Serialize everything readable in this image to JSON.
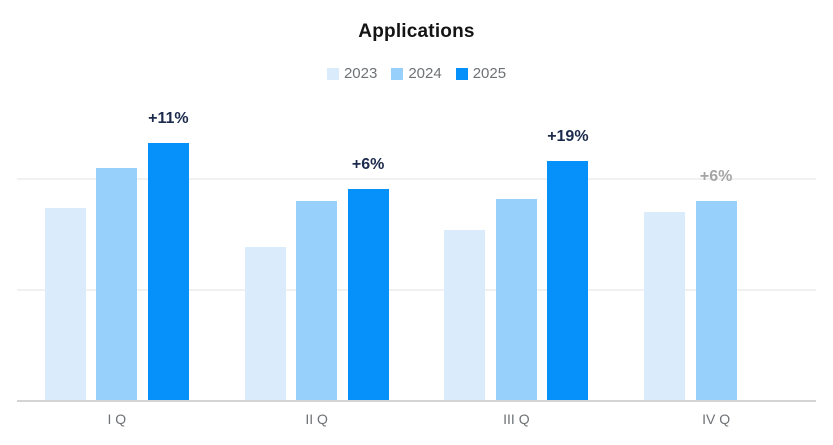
{
  "chart": {
    "title": "Applications"
  },
  "chart_data": {
    "type": "bar",
    "title": "Applications",
    "categories": [
      "I Q",
      "II Q",
      "III Q",
      "IV Q"
    ],
    "series": [
      {
        "name": "2023",
        "color": "#DAECFC",
        "values": [
          87,
          69.5,
          77,
          85
        ]
      },
      {
        "name": "2024",
        "color": "#97D0FB",
        "values": [
          105,
          90,
          91,
          90
        ]
      },
      {
        "name": "2025",
        "color": "#0590FA",
        "values": [
          116,
          95.5,
          108,
          null
        ]
      }
    ],
    "annotations": [
      {
        "category": "I Q",
        "series": "2025",
        "label": "+11%",
        "style": "emphasis"
      },
      {
        "category": "II Q",
        "series": "2025",
        "label": "+6%",
        "style": "emphasis"
      },
      {
        "category": "III Q",
        "series": "2025",
        "label": "+19%",
        "style": "emphasis"
      },
      {
        "category": "IV Q",
        "series": "2024",
        "label": "+6%",
        "style": "muted"
      }
    ],
    "xlabel": "",
    "ylabel": "",
    "ylim": [
      0,
      135
    ],
    "gridline_values": [
      50,
      100
    ],
    "y_axis_labels_visible": false,
    "grid": "horizontal",
    "legend_position": "top",
    "value_note": "relative units estimated from unlabeled gridlines (1 gridline step = 50)"
  },
  "colors": {
    "annotation_emphasis": "#1C2B4D",
    "annotation_muted": "#A5A5A5",
    "gridline": "#F0F1F3",
    "axis_line": "#D5D5D5",
    "title_text": "#141414",
    "label_text": "#6E7276"
  }
}
